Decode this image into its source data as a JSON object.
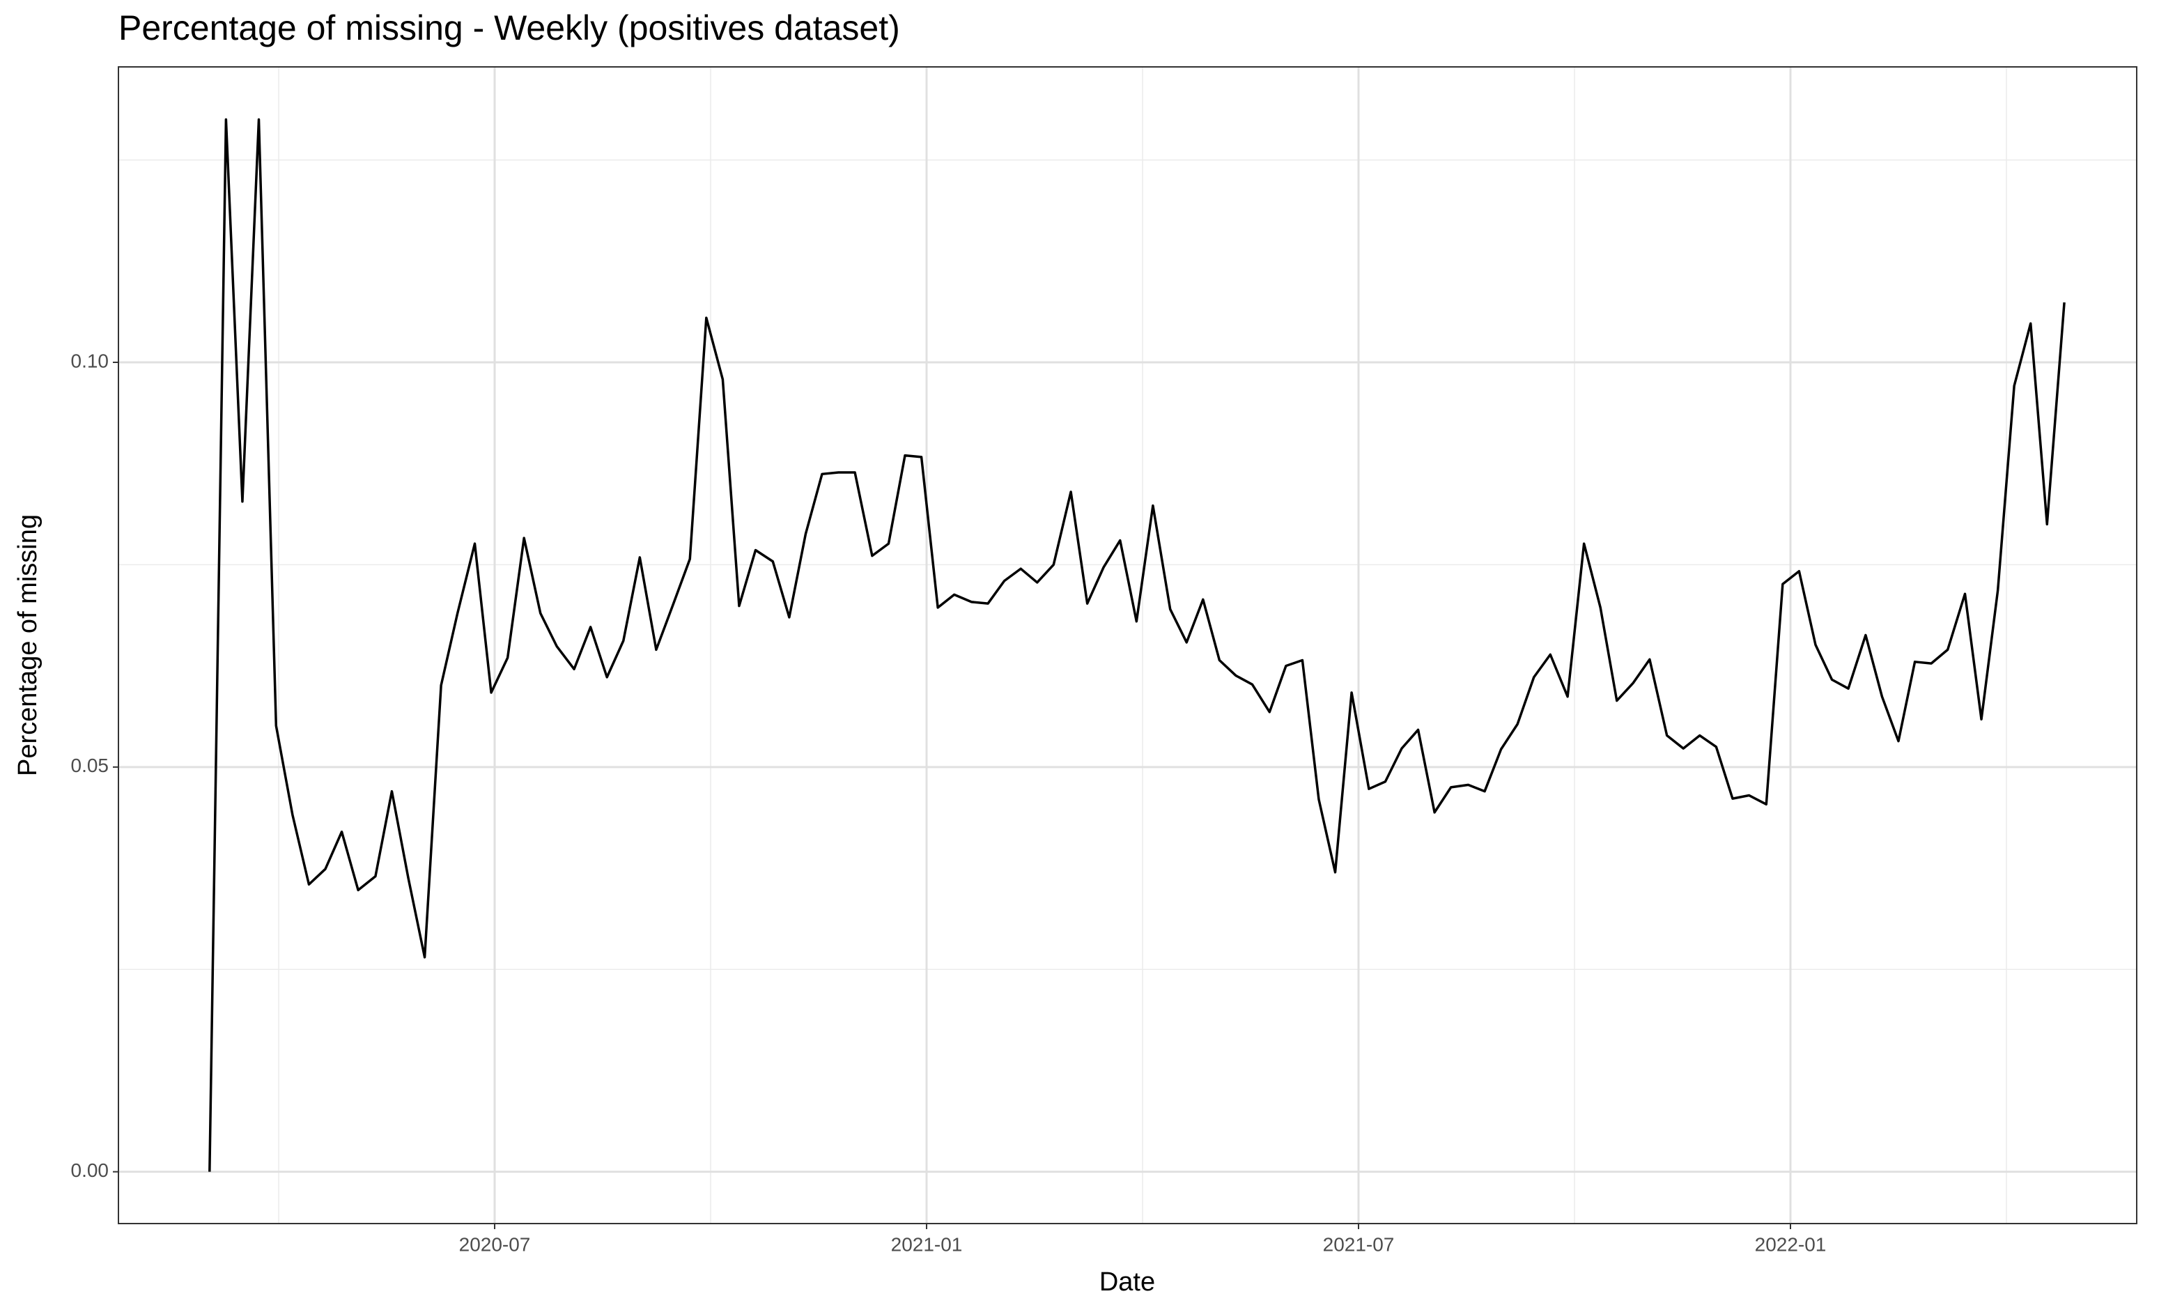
{
  "chart_data": {
    "type": "line",
    "title": "Percentage of missing - Weekly (positives dataset)",
    "x_label": "Date",
    "y_label": "Percentage of missing",
    "x": [
      2020.17,
      2020.189,
      2020.208,
      2020.227,
      2020.247,
      2020.266,
      2020.285,
      2020.304,
      2020.323,
      2020.342,
      2020.362,
      2020.381,
      2020.4,
      2020.419,
      2020.438,
      2020.457,
      2020.477,
      2020.496,
      2020.515,
      2020.534,
      2020.553,
      2020.572,
      2020.592,
      2020.611,
      2020.63,
      2020.649,
      2020.668,
      2020.687,
      2020.707,
      2020.726,
      2020.745,
      2020.764,
      2020.783,
      2020.802,
      2020.822,
      2020.841,
      2020.86,
      2020.879,
      2020.898,
      2020.917,
      2020.937,
      2020.956,
      2020.975,
      2020.994,
      2021.013,
      2021.032,
      2021.052,
      2021.071,
      2021.09,
      2021.109,
      2021.128,
      2021.147,
      2021.167,
      2021.186,
      2021.205,
      2021.224,
      2021.243,
      2021.262,
      2021.282,
      2021.301,
      2021.32,
      2021.339,
      2021.358,
      2021.377,
      2021.397,
      2021.416,
      2021.435,
      2021.454,
      2021.473,
      2021.492,
      2021.512,
      2021.531,
      2021.55,
      2021.569,
      2021.588,
      2021.607,
      2021.627,
      2021.646,
      2021.665,
      2021.684,
      2021.703,
      2021.722,
      2021.742,
      2021.761,
      2021.78,
      2021.799,
      2021.818,
      2021.837,
      2021.857,
      2021.876,
      2021.895,
      2021.914,
      2021.933,
      2021.952,
      2021.972,
      2021.991,
      2022.01,
      2022.029,
      2022.048,
      2022.067,
      2022.087,
      2022.106,
      2022.125,
      2022.144,
      2022.163,
      2022.182,
      2022.202,
      2022.221,
      2022.24,
      2022.259,
      2022.278,
      2022.297,
      2022.317
    ],
    "series": [
      {
        "color": "#000000",
        "values": [
          0.0,
          0.13,
          0.0828,
          0.13,
          0.0551,
          0.0441,
          0.0355,
          0.0374,
          0.042,
          0.0348,
          0.0365,
          0.047,
          0.0363,
          0.0265,
          0.0601,
          0.069,
          0.0776,
          0.0592,
          0.0635,
          0.0783,
          0.069,
          0.0649,
          0.0621,
          0.0673,
          0.0611,
          0.0656,
          0.0759,
          0.0645,
          0.0702,
          0.0757,
          0.1055,
          0.0979,
          0.0699,
          0.0768,
          0.0754,
          0.0685,
          0.0788,
          0.0862,
          0.0864,
          0.0864,
          0.0761,
          0.0776,
          0.0885,
          0.0883,
          0.0697,
          0.0713,
          0.0704,
          0.0702,
          0.073,
          0.0745,
          0.0728,
          0.075,
          0.084,
          0.0702,
          0.0747,
          0.078,
          0.068,
          0.0823,
          0.0695,
          0.0654,
          0.0707,
          0.0632,
          0.0613,
          0.0602,
          0.0568,
          0.0625,
          0.0632,
          0.046,
          0.037,
          0.0592,
          0.0473,
          0.0482,
          0.0523,
          0.0546,
          0.0444,
          0.0475,
          0.0478,
          0.047,
          0.0522,
          0.0553,
          0.0611,
          0.0639,
          0.0587,
          0.0776,
          0.0697,
          0.0582,
          0.0604,
          0.0633,
          0.0539,
          0.0523,
          0.0539,
          0.0525,
          0.0461,
          0.0465,
          0.0454,
          0.0726,
          0.0742,
          0.0651,
          0.0608,
          0.0597,
          0.0663,
          0.0587,
          0.0532,
          0.063,
          0.0628,
          0.0645,
          0.0714,
          0.0559,
          0.0718,
          0.0971,
          0.1048,
          0.08,
          0.1074
        ]
      }
    ],
    "xlim": [
      2020.0645,
      2022.4008
    ],
    "ylim": [
      -0.0064,
      0.1365
    ],
    "xticks": [
      {
        "value": 2020.5,
        "label": "2020-07"
      },
      {
        "value": 2021.0,
        "label": "2021-01"
      },
      {
        "value": 2021.5,
        "label": "2021-07"
      },
      {
        "value": 2022.0,
        "label": "2022-01"
      }
    ],
    "yticks": [
      {
        "value": 0,
        "label": "0.00"
      },
      0.05,
      {
        "value": 0.1,
        "label": "0.10"
      }
    ],
    "minor_xticks": [
      2020.25,
      2020.75,
      2021.25,
      2021.75,
      2022.25
    ],
    "minor_yticks": [
      0.025,
      0.075,
      0.125
    ],
    "grid": true
  }
}
